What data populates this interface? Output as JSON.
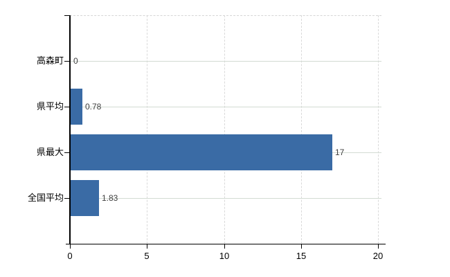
{
  "chart": {
    "background_color": "#ffffff",
    "bar_color": "#3a6ba5",
    "axis_color": "#000000",
    "h_grid_color": "#d3dbd3",
    "v_grid_color": "#d9d9d9",
    "category_label_color": "#000000",
    "value_label_color": "#3f3f3f"
  },
  "chart_data": {
    "type": "bar",
    "orientation": "horizontal",
    "title": "",
    "xlabel": "",
    "ylabel": "",
    "categories": [
      "高森町",
      "県平均",
      "県最大",
      "全国平均"
    ],
    "values": [
      0,
      0.78,
      17,
      1.83
    ],
    "value_labels": [
      "0",
      "0.78",
      "17",
      "1.83"
    ],
    "x_ticks": [
      0,
      5,
      10,
      15,
      20
    ],
    "x_tick_labels": [
      "0",
      "5",
      "10",
      "15",
      "20"
    ],
    "xlim": [
      0,
      20
    ],
    "grid": true,
    "legend": false
  }
}
